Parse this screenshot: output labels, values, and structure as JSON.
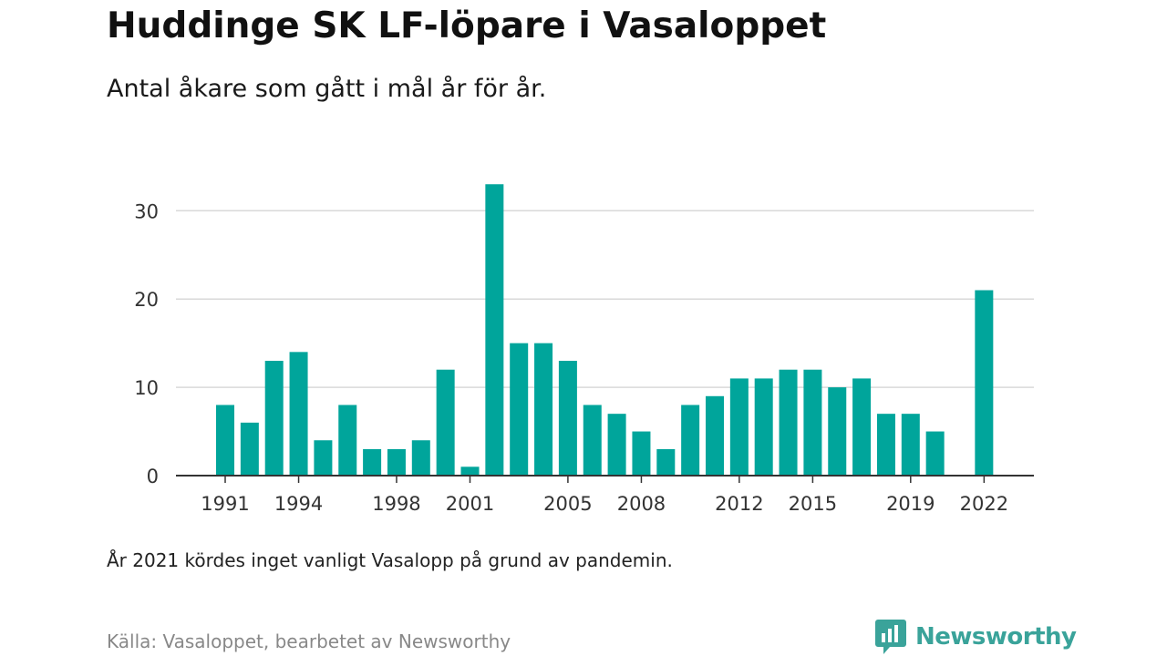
{
  "header": {
    "title": "Huddinge SK LF-löpare i Vasaloppet",
    "subtitle": "Antal åkare som gått i mål år för år."
  },
  "footer": {
    "note": "År 2021 kördes inget vanligt Vasalopp på grund av pandemin.",
    "source": "Källa: Vasaloppet, bearbetet av Newsworthy",
    "brand": "Newsworthy",
    "brand_color": "#3aa39a"
  },
  "icons": {
    "brand_logo": "newsworthy-chart-bubble-icon"
  },
  "chart_data": {
    "type": "bar",
    "title": "Huddinge SK LF-löpare i Vasaloppet",
    "subtitle": "Antal åkare som gått i mål år för år.",
    "xlabel": "",
    "ylabel": "",
    "bar_color": "#00a59b",
    "grid_color": "#d9d9d9",
    "grid": true,
    "ylim": [
      0,
      34
    ],
    "yticks": [
      0,
      10,
      20,
      30
    ],
    "xticks": [
      1991,
      1994,
      1998,
      2001,
      2005,
      2008,
      2012,
      2015,
      2019,
      2022
    ],
    "years": [
      1991,
      1992,
      1993,
      1994,
      1995,
      1996,
      1997,
      1998,
      1999,
      2000,
      2001,
      2002,
      2003,
      2004,
      2005,
      2006,
      2007,
      2008,
      2009,
      2010,
      2011,
      2012,
      2013,
      2014,
      2015,
      2016,
      2017,
      2018,
      2019,
      2020,
      2021,
      2022
    ],
    "values": [
      8,
      6,
      13,
      14,
      4,
      8,
      3,
      3,
      4,
      12,
      1,
      33,
      15,
      15,
      13,
      8,
      7,
      5,
      3,
      8,
      9,
      11,
      11,
      12,
      12,
      10,
      11,
      7,
      7,
      5,
      null,
      21
    ]
  }
}
